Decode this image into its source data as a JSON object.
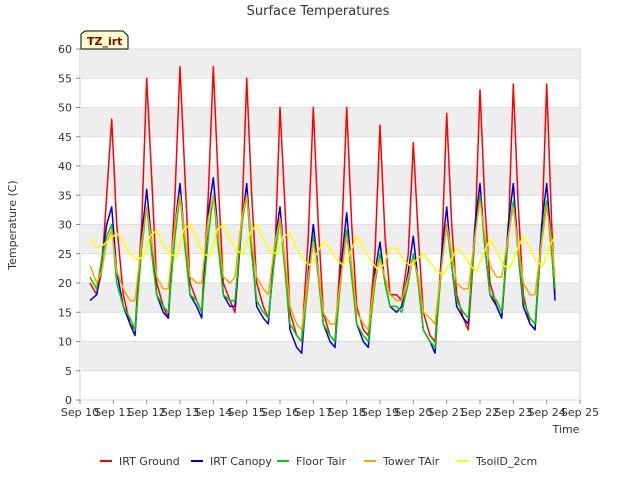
{
  "chart_data": {
    "type": "line",
    "title": "Surface Temperatures",
    "badge": "TZ_irt",
    "xlabel": "Time",
    "ylabel": "Temperature (C)",
    "ylim": [
      0,
      60
    ],
    "yticks": [
      0,
      5,
      10,
      15,
      20,
      25,
      30,
      35,
      40,
      45,
      50,
      55,
      60
    ],
    "xlim": [
      10,
      25
    ],
    "xticks": [
      10,
      11,
      12,
      13,
      14,
      15,
      16,
      17,
      18,
      19,
      20,
      21,
      22,
      23,
      24,
      25
    ],
    "xtick_labels": [
      "Sep 10",
      "Sep 11",
      "Sep 12",
      "Sep 13",
      "Sep 14",
      "Sep 15",
      "Sep 16",
      "Sep 17",
      "Sep 18",
      "Sep 19",
      "Sep 20",
      "Sep 21",
      "Sep 22",
      "Sep 23",
      "Sep 24",
      "Sep 25"
    ],
    "grid": "horizontal bands",
    "legend_position": "bottom",
    "series": [
      {
        "name": "IRT Ground",
        "color": "#ff0000",
        "x": [
          10.3,
          10.5,
          10.65,
          10.8,
          10.95,
          11.1,
          11.3,
          11.5,
          11.65,
          11.85,
          12.0,
          12.15,
          12.3,
          12.5,
          12.65,
          12.85,
          13.0,
          13.15,
          13.3,
          13.5,
          13.65,
          13.85,
          14.0,
          14.15,
          14.3,
          14.5,
          14.65,
          14.85,
          15.0,
          15.15,
          15.3,
          15.5,
          15.65,
          15.85,
          16.0,
          16.15,
          16.3,
          16.5,
          16.65,
          16.85,
          17.0,
          17.15,
          17.3,
          17.5,
          17.65,
          17.85,
          18.0,
          18.15,
          18.3,
          18.5,
          18.65,
          18.85,
          19.0,
          19.15,
          19.3,
          19.5,
          19.65,
          19.85,
          20.0,
          20.15,
          20.3,
          20.5,
          20.65,
          20.85,
          21.0,
          21.15,
          21.3,
          21.5,
          21.65,
          21.85,
          22.0,
          22.15,
          22.3,
          22.5,
          22.65,
          22.85,
          23.0,
          23.15,
          23.3,
          23.5,
          23.65,
          23.85,
          24.0,
          24.15,
          24.25
        ],
        "values": [
          20,
          18,
          22,
          35,
          48,
          30,
          18,
          13,
          12,
          30,
          55,
          38,
          20,
          16,
          14,
          35,
          57,
          38,
          20,
          17,
          15,
          35,
          57,
          37,
          20,
          17,
          15,
          30,
          55,
          35,
          20,
          16,
          14,
          25,
          50,
          33,
          15,
          11,
          10,
          28,
          50,
          30,
          15,
          11,
          10,
          28,
          50,
          30,
          16,
          12,
          11,
          25,
          47,
          28,
          18,
          18,
          17,
          25,
          44,
          28,
          15,
          11,
          10,
          25,
          49,
          30,
          18,
          14,
          12,
          28,
          53,
          33,
          20,
          16,
          14,
          28,
          54,
          33,
          18,
          13,
          12,
          28,
          54,
          30,
          18
        ]
      },
      {
        "name": "IRT Canopy",
        "color": "#0000cc",
        "x": [
          10.3,
          10.5,
          10.65,
          10.8,
          10.95,
          11.1,
          11.3,
          11.5,
          11.65,
          11.85,
          12.0,
          12.15,
          12.3,
          12.5,
          12.65,
          12.85,
          13.0,
          13.15,
          13.3,
          13.5,
          13.65,
          13.85,
          14.0,
          14.15,
          14.3,
          14.5,
          14.65,
          14.85,
          15.0,
          15.15,
          15.3,
          15.5,
          15.65,
          15.85,
          16.0,
          16.15,
          16.3,
          16.5,
          16.65,
          16.85,
          17.0,
          17.15,
          17.3,
          17.5,
          17.65,
          17.85,
          18.0,
          18.15,
          18.3,
          18.5,
          18.65,
          18.85,
          19.0,
          19.15,
          19.3,
          19.5,
          19.65,
          19.85,
          20.0,
          20.15,
          20.3,
          20.5,
          20.65,
          20.85,
          21.0,
          21.15,
          21.3,
          21.5,
          21.65,
          21.85,
          22.0,
          22.15,
          22.3,
          22.5,
          22.65,
          22.85,
          23.0,
          23.15,
          23.3,
          23.5,
          23.65,
          23.85,
          24.0,
          24.15,
          24.25
        ],
        "values": [
          17,
          18,
          24,
          30,
          33,
          22,
          16,
          13,
          11,
          28,
          36,
          27,
          18,
          15,
          14,
          30,
          37,
          27,
          18,
          16,
          14,
          32,
          38,
          28,
          18,
          16,
          16,
          30,
          37,
          26,
          16,
          14,
          13,
          27,
          33,
          23,
          12,
          9,
          8,
          22,
          30,
          22,
          13,
          10,
          9,
          24,
          32,
          22,
          13,
          10,
          9,
          22,
          27,
          20,
          16,
          15,
          16,
          22,
          28,
          20,
          12,
          10,
          8,
          25,
          33,
          23,
          16,
          14,
          13,
          30,
          37,
          26,
          18,
          16,
          14,
          30,
          37,
          25,
          16,
          13,
          12,
          30,
          37,
          26,
          17
        ]
      },
      {
        "name": "Floor Tair",
        "color": "#00cc00",
        "x": [
          10.3,
          10.5,
          10.65,
          10.8,
          10.95,
          11.1,
          11.3,
          11.5,
          11.65,
          11.85,
          12.0,
          12.15,
          12.3,
          12.5,
          12.65,
          12.85,
          13.0,
          13.15,
          13.3,
          13.5,
          13.65,
          13.85,
          14.0,
          14.15,
          14.3,
          14.5,
          14.65,
          14.85,
          15.0,
          15.15,
          15.3,
          15.5,
          15.65,
          15.85,
          16.0,
          16.15,
          16.3,
          16.5,
          16.65,
          16.85,
          17.0,
          17.15,
          17.3,
          17.5,
          17.65,
          17.85,
          18.0,
          18.15,
          18.3,
          18.5,
          18.65,
          18.85,
          19.0,
          19.15,
          19.3,
          19.5,
          19.65,
          19.85,
          20.0,
          20.15,
          20.3,
          20.5,
          20.65,
          20.85,
          21.0,
          21.15,
          21.3,
          21.5,
          21.65,
          21.85,
          22.0,
          22.15,
          22.3,
          22.5,
          22.65,
          22.85,
          23.0,
          23.15,
          23.3,
          23.5,
          23.65,
          23.85,
          24.0,
          24.15,
          24.25
        ],
        "values": [
          21,
          19,
          24,
          28,
          30,
          20,
          16,
          14,
          12,
          26,
          33,
          25,
          18,
          16,
          15,
          28,
          35,
          26,
          18,
          17,
          15,
          28,
          35,
          26,
          18,
          17,
          17,
          30,
          35,
          25,
          17,
          15,
          14,
          25,
          31,
          22,
          13,
          11,
          10,
          20,
          28,
          21,
          13,
          11,
          10,
          22,
          29,
          21,
          13,
          11,
          10,
          20,
          25,
          20,
          16,
          16,
          15,
          20,
          25,
          20,
          12,
          10,
          9,
          23,
          30,
          23,
          17,
          15,
          14,
          28,
          35,
          26,
          18,
          17,
          15,
          28,
          34,
          25,
          17,
          14,
          13,
          28,
          34,
          25,
          19
        ]
      },
      {
        "name": "Tower TAir",
        "color": "#ffa500",
        "x": [
          10.3,
          10.5,
          10.65,
          10.8,
          10.95,
          11.1,
          11.3,
          11.5,
          11.65,
          11.85,
          12.0,
          12.15,
          12.3,
          12.5,
          12.65,
          12.85,
          13.0,
          13.15,
          13.3,
          13.5,
          13.65,
          13.85,
          14.0,
          14.15,
          14.3,
          14.5,
          14.65,
          14.85,
          15.0,
          15.15,
          15.3,
          15.5,
          15.65,
          15.85,
          16.0,
          16.15,
          16.3,
          16.5,
          16.65,
          16.85,
          17.0,
          17.15,
          17.3,
          17.5,
          17.65,
          17.85,
          18.0,
          18.15,
          18.3,
          18.5,
          18.65,
          18.85,
          19.0,
          19.15,
          19.3,
          19.5,
          19.65,
          19.85,
          20.0,
          20.15,
          20.3,
          20.5,
          20.65,
          20.85,
          21.0,
          21.15,
          21.3,
          21.5,
          21.65,
          21.85,
          22.0,
          22.15,
          22.3,
          22.5,
          22.65,
          22.85,
          23.0,
          23.15,
          23.3,
          23.5,
          23.65,
          23.85,
          24.0,
          24.15,
          24.25
        ],
        "values": [
          23,
          20,
          22,
          27,
          29,
          22,
          19,
          17,
          17,
          27,
          33,
          27,
          21,
          19,
          19,
          30,
          35,
          28,
          21,
          20,
          20,
          31,
          35,
          28,
          21,
          20,
          21,
          31,
          35,
          27,
          21,
          19,
          18,
          27,
          31,
          24,
          16,
          13,
          12,
          21,
          27,
          22,
          15,
          13,
          13,
          22,
          28,
          23,
          15,
          13,
          12,
          21,
          24,
          21,
          18,
          17,
          17,
          21,
          24,
          21,
          15,
          14,
          13,
          23,
          30,
          25,
          20,
          19,
          19,
          28,
          34,
          28,
          23,
          21,
          21,
          28,
          33,
          26,
          20,
          18,
          18,
          27,
          33,
          27,
          21
        ]
      },
      {
        "name": "TsoilD_2cm",
        "color": "#ffff00",
        "x": [
          10.3,
          10.5,
          10.7,
          10.9,
          11.1,
          11.3,
          11.5,
          11.7,
          11.9,
          12.1,
          12.3,
          12.5,
          12.7,
          12.9,
          13.1,
          13.3,
          13.5,
          13.7,
          13.9,
          14.1,
          14.3,
          14.5,
          14.7,
          14.9,
          15.1,
          15.3,
          15.5,
          15.7,
          15.9,
          16.1,
          16.3,
          16.5,
          16.7,
          16.9,
          17.1,
          17.3,
          17.5,
          17.7,
          17.9,
          18.1,
          18.3,
          18.5,
          18.7,
          18.9,
          19.1,
          19.3,
          19.5,
          19.7,
          19.9,
          20.1,
          20.3,
          20.5,
          20.7,
          20.9,
          21.1,
          21.3,
          21.5,
          21.7,
          21.9,
          22.1,
          22.3,
          22.5,
          22.7,
          22.9,
          23.1,
          23.3,
          23.5,
          23.7,
          23.9,
          24.1,
          24.25
        ],
        "values": [
          27.5,
          26,
          26.5,
          27.5,
          28.5,
          27,
          25,
          24,
          24.5,
          28,
          29,
          26.5,
          25,
          24.5,
          29,
          30,
          27.5,
          25,
          24.5,
          29,
          30,
          27.5,
          25.5,
          25,
          28.5,
          30,
          27.5,
          25.5,
          25,
          28,
          28.5,
          26,
          24,
          23,
          25,
          27,
          26,
          24,
          23,
          25,
          28,
          26,
          24,
          22.5,
          23,
          26,
          26,
          24,
          23,
          24,
          25,
          23.5,
          22,
          21.5,
          23.5,
          26,
          25,
          23,
          22,
          25,
          27.5,
          25.5,
          23,
          22.5,
          25.5,
          28,
          26,
          23.5,
          23,
          26.5,
          28
        ]
      }
    ]
  }
}
